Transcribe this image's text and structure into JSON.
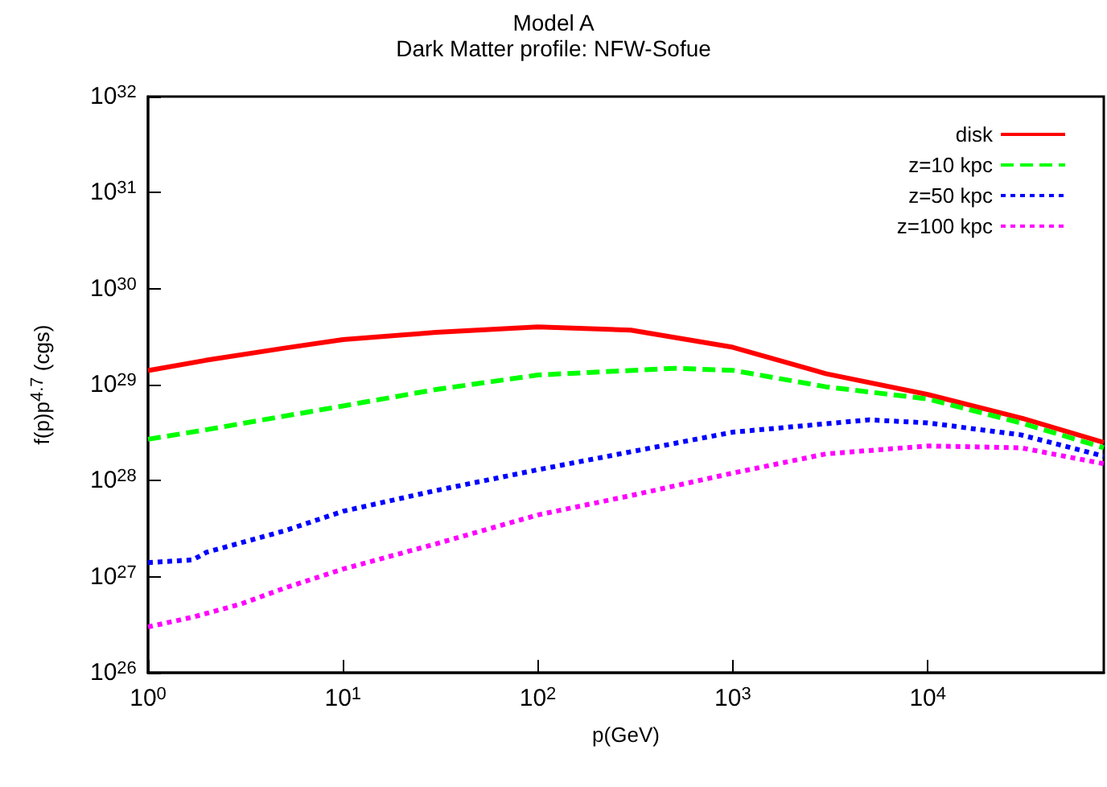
{
  "chart_data": {
    "type": "line",
    "title": "Model A",
    "subtitle": "Dark Matter profile: NFW-Sofue",
    "xlabel": "p(GeV)",
    "ylabel": "f(p)p$^{4.7}$ (cgs)",
    "log": "xy",
    "grid": false,
    "legend": "top right",
    "marker": "none",
    "xlim": [
      1,
      80000
    ],
    "ylim": [
      1e+26,
      1e+32
    ],
    "xticks": [
      {
        "value": 1,
        "label": "10$^{0}$"
      },
      {
        "value": 10,
        "label": "10$^{1}$"
      },
      {
        "value": 100,
        "label": "10$^{2}$"
      },
      {
        "value": 1000,
        "label": "10$^{3}$"
      },
      {
        "value": 10000,
        "label": "10$^{4}$"
      }
    ],
    "yticks": [
      {
        "value": 1e+26,
        "label": "10$^{26}$"
      },
      {
        "value": 1e+27,
        "label": "10$^{27}$"
      },
      {
        "value": 1e+28,
        "label": "10$^{28}$"
      },
      {
        "value": 1e+29,
        "label": "10$^{29}$"
      },
      {
        "value": 1e+30,
        "label": "10$^{30}$"
      },
      {
        "value": 1e+31,
        "label": "10$^{31}$"
      },
      {
        "value": 1e+32,
        "label": "10$^{32}$"
      }
    ],
    "series": [
      {
        "name": "disk",
        "color": "#ff0000",
        "line_style": "solid",
        "x": [
          1,
          2,
          5,
          10,
          30,
          100,
          300,
          1000,
          3000,
          10000,
          30000,
          80000
        ],
        "values": [
          1.4e+29,
          1.8e+29,
          2.4e+29,
          2.95e+29,
          3.5e+29,
          4e+29,
          3.7e+29,
          2.45e+29,
          1.3e+29,
          7.9e+28,
          4.5e+28,
          2.5e+28
        ]
      },
      {
        "name": "z=10 kpc",
        "color": "#00ff00",
        "line_style": "dashed",
        "x": [
          1,
          2,
          5,
          10,
          30,
          100,
          500,
          1000,
          3000,
          10000,
          30000,
          80000
        ],
        "values": [
          2.7e+28,
          3.4e+28,
          4.7e+28,
          6e+28,
          8.9e+28,
          1.26e+29,
          1.48e+29,
          1.41e+29,
          9.5e+28,
          7.1e+28,
          4e+28,
          2.2e+28
        ]
      },
      {
        "name": "z=50 kpc",
        "color": "#0000ff",
        "line_style": "dotted",
        "x": [
          1,
          1.7,
          2,
          5,
          10,
          30,
          100,
          300,
          1000,
          5000,
          10000,
          30000,
          80000
        ],
        "values": [
          1.4e+27,
          1.5e+27,
          1.8e+27,
          3e+27,
          4.8e+27,
          7.9e+27,
          1.3e+28,
          2e+28,
          3.2e+28,
          4.3e+28,
          4e+28,
          3e+28,
          1.8e+28
        ]
      },
      {
        "name": "z=100 kpc",
        "color": "#ff00ff",
        "line_style": "dotted",
        "x": [
          1,
          1.7,
          3,
          5,
          10,
          30,
          100,
          300,
          1000,
          3000,
          10000,
          30000,
          80000
        ],
        "values": [
          3e+26,
          3.8e+26,
          5.2e+26,
          7.6e+26,
          1.2e+27,
          2.2e+27,
          4.4e+27,
          7e+27,
          1.2e+28,
          1.9e+28,
          2.3e+28,
          2.2e+28,
          1.5e+28
        ]
      }
    ]
  }
}
